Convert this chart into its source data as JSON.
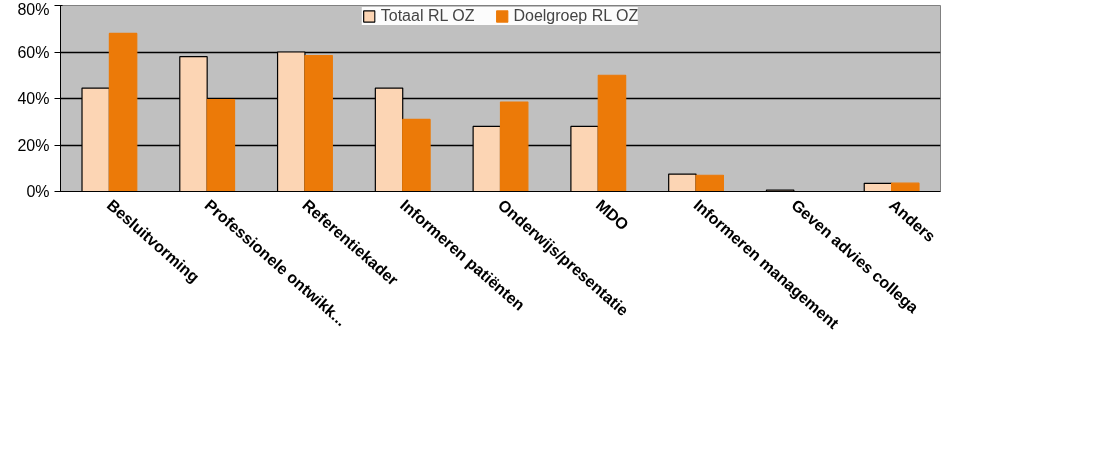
{
  "chart_data": {
    "type": "bar",
    "categories": [
      "Besluitvorming",
      "Professionele ontwikk...",
      "Referentiekader",
      "Informeren patiënten",
      "Onderwijs/presentatie",
      "MDO",
      "Informeren management",
      "Geven advies collega",
      "Anders"
    ],
    "series": [
      {
        "name": "Totaal RL OZ",
        "color": "#fcd5b4",
        "values": [
          44.5,
          58,
          60,
          44.5,
          28,
          28,
          7.5,
          0.6,
          3.5
        ]
      },
      {
        "name": "Doelgroep RL OZ",
        "color": "#ec7a08",
        "values": [
          68,
          39.5,
          58.5,
          31,
          38.5,
          50,
          7,
          0,
          3.6
        ]
      }
    ],
    "ylim": [
      0,
      80
    ],
    "yticks": [
      {
        "value": 0,
        "label": "0%"
      },
      {
        "value": 20,
        "label": "20%"
      },
      {
        "value": 40,
        "label": "40%"
      },
      {
        "value": 60,
        "label": "60%"
      },
      {
        "value": 80,
        "label": "80%"
      }
    ],
    "grid": "y",
    "legend": "top"
  }
}
